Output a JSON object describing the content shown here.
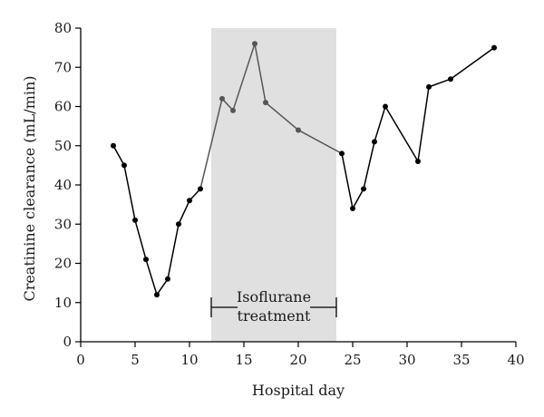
{
  "chart_data": {
    "type": "line",
    "xlabel": "Hospital day",
    "ylabel": "Creatinine clearance (mL/min)",
    "xlim": [
      0,
      40
    ],
    "ylim": [
      0,
      80
    ],
    "xticks": [
      0,
      5,
      10,
      15,
      20,
      25,
      30,
      35,
      40
    ],
    "yticks": [
      0,
      10,
      20,
      30,
      40,
      50,
      60,
      70,
      80
    ],
    "grid": false,
    "legend": "none",
    "series": [
      {
        "color": "#000000",
        "points": [
          {
            "x": 3,
            "y": 50
          },
          {
            "x": 4,
            "y": 45
          },
          {
            "x": 5,
            "y": 31
          },
          {
            "x": 6,
            "y": 21
          },
          {
            "x": 7,
            "y": 12
          },
          {
            "x": 8,
            "y": 16
          },
          {
            "x": 9,
            "y": 30
          },
          {
            "x": 10,
            "y": 36
          },
          {
            "x": 11,
            "y": 39
          },
          {
            "x": 13,
            "y": 62
          },
          {
            "x": 14,
            "y": 59
          },
          {
            "x": 16,
            "y": 76
          },
          {
            "x": 17,
            "y": 61
          },
          {
            "x": 20,
            "y": 54
          },
          {
            "x": 24,
            "y": 48
          },
          {
            "x": 25,
            "y": 34
          },
          {
            "x": 26,
            "y": 39
          },
          {
            "x": 27,
            "y": 51
          },
          {
            "x": 28,
            "y": 60
          },
          {
            "x": 31,
            "y": 46
          },
          {
            "x": 32,
            "y": 65
          },
          {
            "x": 34,
            "y": 67
          },
          {
            "x": 38,
            "y": 75
          }
        ]
      }
    ],
    "shaded_region": {
      "x_start": 12,
      "x_end": 23.5,
      "color": "#e0e0e0",
      "inside_color": "#555555",
      "label_lines": [
        "Isoflurane",
        "treatment"
      ]
    }
  }
}
